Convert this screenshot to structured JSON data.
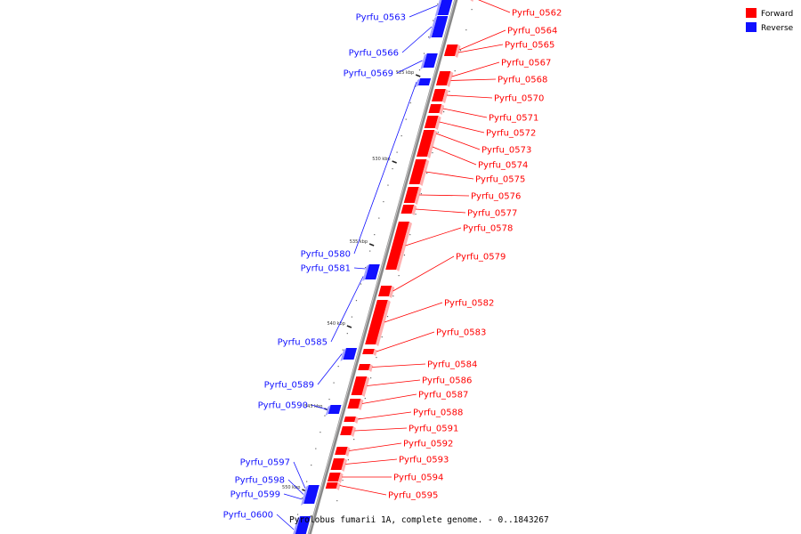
{
  "legend": {
    "forward_label": "Forward",
    "reverse_label": "Reverse",
    "forward_color": "#ff0000",
    "reverse_color": "#1010ff"
  },
  "caption": "Pyrolobus fumarii 1A, complete genome. - 0..1843267",
  "axis": {
    "start_kbp": 521,
    "end_kbp": 552,
    "ticks": [
      "525 kbp",
      "530 kbp",
      "535 kbp",
      "540 kbp",
      "545 kbp",
      "550 kbp"
    ]
  },
  "forward_genes": [
    "Pyrfu_0562",
    "Pyrfu_0564",
    "Pyrfu_0565",
    "Pyrfu_0567",
    "Pyrfu_0568",
    "Pyrfu_0570",
    "Pyrfu_0571",
    "Pyrfu_0572",
    "Pyrfu_0573",
    "Pyrfu_0574",
    "Pyrfu_0575",
    "Pyrfu_0576",
    "Pyrfu_0577",
    "Pyrfu_0578",
    "Pyrfu_0579",
    "Pyrfu_0582",
    "Pyrfu_0583",
    "Pyrfu_0584",
    "Pyrfu_0586",
    "Pyrfu_0587",
    "Pyrfu_0588",
    "Pyrfu_0591",
    "Pyrfu_0592",
    "Pyrfu_0593",
    "Pyrfu_0594",
    "Pyrfu_0595"
  ],
  "reverse_genes": [
    "Pyrfu_0563",
    "Pyrfu_0566",
    "Pyrfu_0569",
    "Pyrfu_0580",
    "Pyrfu_0581",
    "Pyrfu_0585",
    "Pyrfu_0589",
    "Pyrfu_0590",
    "Pyrfu_0597",
    "Pyrfu_0598",
    "Pyrfu_0599",
    "Pyrfu_0600"
  ]
}
